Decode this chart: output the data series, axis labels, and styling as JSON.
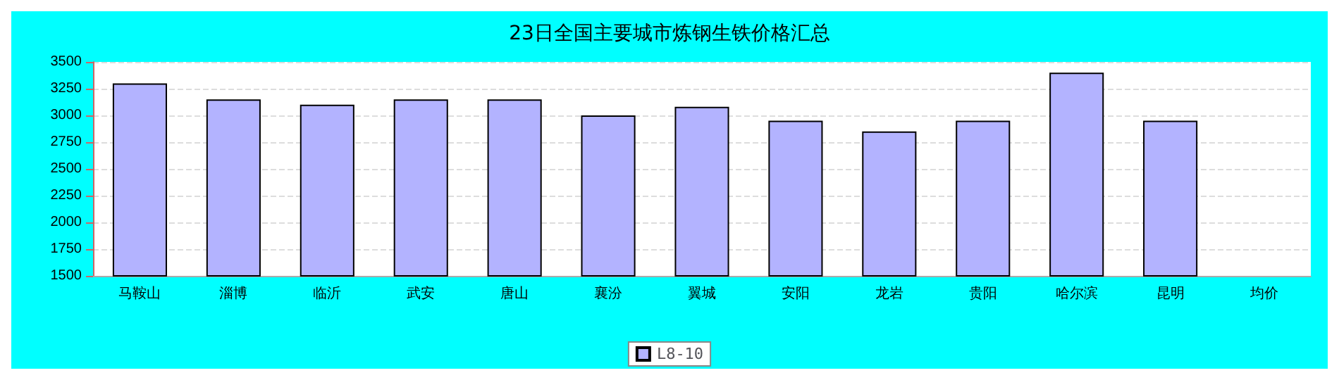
{
  "chart_data": {
    "type": "bar",
    "title": "23日全国主要城市炼钢生铁价格汇总",
    "categories": [
      "马鞍山",
      "淄博",
      "临沂",
      "武安",
      "唐山",
      "襄汾",
      "翼城",
      "安阳",
      "龙岩",
      "贵阳",
      "哈尔滨",
      "昆明",
      "均价"
    ],
    "series": [
      {
        "name": "L8-10",
        "color": "#b3b3ff",
        "values": [
          3300,
          3150,
          3100,
          3150,
          3150,
          3000,
          3080,
          2950,
          2850,
          2950,
          3400,
          2950,
          null
        ]
      }
    ],
    "ylim": [
      1500,
      3500
    ],
    "yticks": [
      1500,
      1750,
      2000,
      2250,
      2500,
      2750,
      3000,
      3250,
      3500
    ],
    "grid": "y",
    "legend": "bottom"
  }
}
